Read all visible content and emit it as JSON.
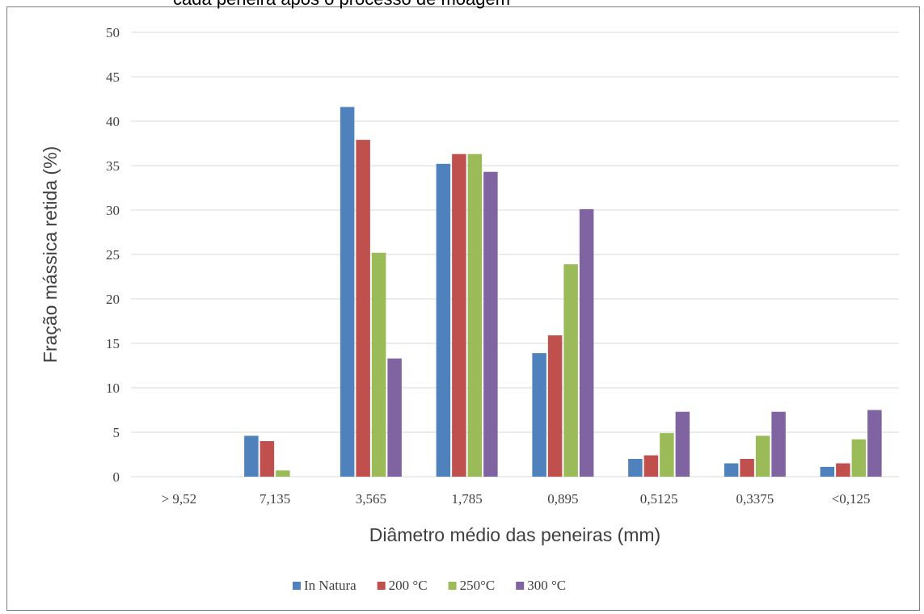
{
  "chart_data": {
    "type": "bar",
    "title": "cada peneira após o processo de moagem",
    "xlabel": "Diâmetro médio das peneiras (mm)",
    "ylabel": "Fração mássica retida  (%)",
    "ylim": [
      0,
      50
    ],
    "yticks": [
      0,
      5,
      10,
      15,
      20,
      25,
      30,
      35,
      40,
      45,
      50
    ],
    "grid": true,
    "legend_position": "bottom",
    "categories": [
      "> 9,52",
      "7,135",
      "3,565",
      "1,785",
      "0,895",
      "0,5125",
      "0,3375",
      "<0,125"
    ],
    "series": [
      {
        "name": "In Natura",
        "color": "#4f81bd",
        "values": [
          0,
          4.6,
          41.6,
          35.2,
          13.9,
          2.0,
          1.5,
          1.1
        ]
      },
      {
        "name": "200 °C",
        "color": "#c0504d",
        "values": [
          0,
          4.0,
          37.9,
          36.3,
          15.9,
          2.4,
          2.0,
          1.5
        ]
      },
      {
        "name": "250°C",
        "color": "#9bbb59",
        "values": [
          0,
          0.7,
          25.2,
          36.3,
          23.9,
          4.9,
          4.6,
          4.2
        ]
      },
      {
        "name": "300 °C",
        "color": "#8064a2",
        "values": [
          0,
          0,
          13.3,
          34.3,
          30.1,
          7.3,
          7.3,
          7.5
        ]
      }
    ]
  }
}
